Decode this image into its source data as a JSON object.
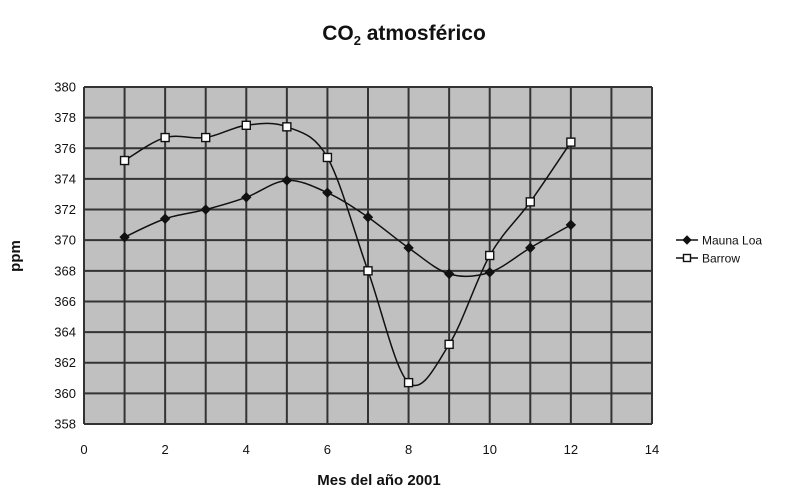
{
  "colors": {
    "plot_background": "#c0c0c0",
    "gridline": "#333333",
    "series_line": "#111111",
    "barrow_marker_fill": "#ffffff"
  },
  "chart_data": {
    "type": "line",
    "title_main": "CO",
    "title_sub": "2",
    "title_rest": " atmosférico",
    "xlabel": "Mes del año 2001",
    "ylabel": "ppm",
    "xlim": [
      0,
      14
    ],
    "ylim": [
      358,
      380
    ],
    "x_ticks": [
      "0",
      "2",
      "4",
      "6",
      "8",
      "10",
      "12",
      "14"
    ],
    "y_ticks": [
      "358",
      "360",
      "362",
      "364",
      "366",
      "368",
      "370",
      "372",
      "374",
      "376",
      "378",
      "380"
    ],
    "x_grid_step": 1,
    "y_grid_step": 2,
    "grid": true,
    "legend_position": "right",
    "series": [
      {
        "name": "Mauna Loa",
        "marker": "diamond-filled",
        "x": [
          1,
          2,
          3,
          4,
          5,
          6,
          7,
          8,
          9,
          10,
          11,
          12
        ],
        "y": [
          370.2,
          371.4,
          372.0,
          372.8,
          373.9,
          373.1,
          371.5,
          369.5,
          367.8,
          367.9,
          369.5,
          371.0
        ]
      },
      {
        "name": "Barrow",
        "marker": "square-open",
        "x": [
          1,
          2,
          3,
          4,
          5,
          6,
          7,
          8,
          9,
          10,
          11,
          12
        ],
        "y": [
          375.2,
          376.7,
          376.7,
          377.5,
          377.4,
          375.4,
          368.0,
          360.7,
          363.2,
          369.0,
          372.5,
          376.4
        ]
      }
    ]
  }
}
